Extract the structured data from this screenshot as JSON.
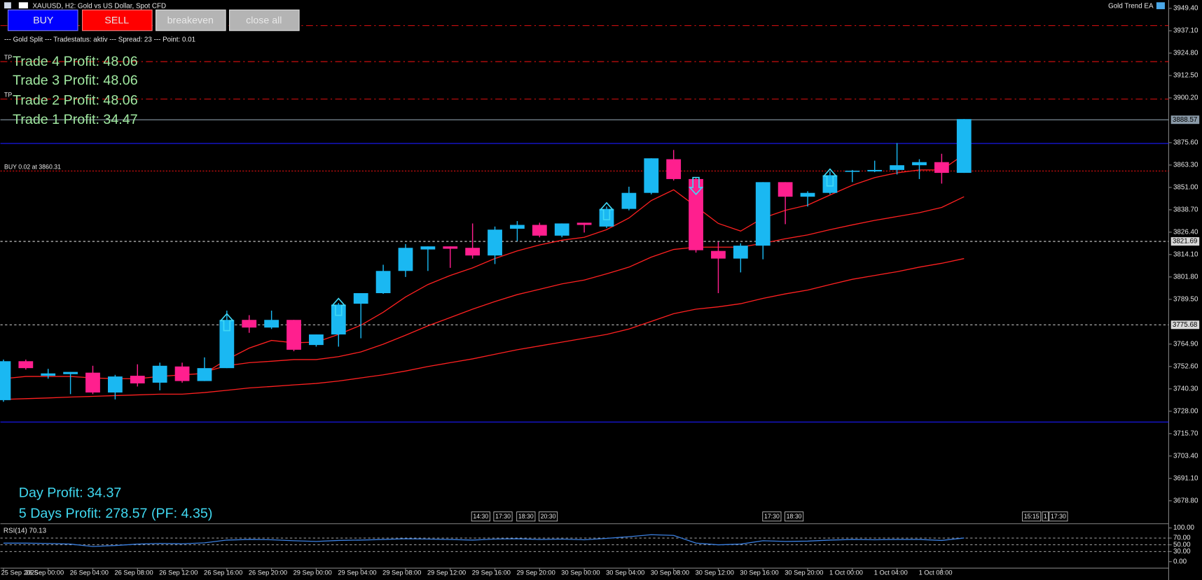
{
  "header": {
    "title": "XAUUSD, H2:  Gold vs US Dollar, Spot CFD",
    "ea_name": "Gold Trend EA",
    "status": "--- Gold Split --- Tradestatus: aktiv --- Spread: 23 --- Point: 0.01"
  },
  "buttons": [
    "BUY",
    "SELL",
    "breakeven",
    "close all"
  ],
  "panel": {
    "trades": [
      "Trade 4 Profit: 48.06",
      "Trade 3 Profit: 48.06",
      "Trade 2 Profit: 48.06",
      "Trade 1 Profit: 34.47"
    ],
    "day_profit": "Day Profit: 34.37",
    "five_days_profit": "5 Days Profit: 278.57 (PF: 4.35)"
  },
  "session_marks": [
    "14:30",
    "17:30",
    "18:30",
    "20:30",
    "17:30",
    "18:30",
    "15:15",
    "1",
    "17:30"
  ],
  "chart_data": {
    "type": "candlestick",
    "categories": [
      "25 Sep 2025",
      null,
      "26 Sep 00:00",
      null,
      "26 Sep 04:00",
      null,
      "26 Sep 08:00",
      null,
      "26 Sep 12:00",
      null,
      "26 Sep 16:00",
      null,
      "26 Sep 20:00",
      null,
      "29 Sep 00:00",
      null,
      "29 Sep 04:00",
      null,
      "29 Sep 08:00",
      null,
      "29 Sep 12:00",
      null,
      "29 Sep 16:00",
      null,
      "29 Sep 20:00",
      null,
      "30 Sep 00:00",
      null,
      "30 Sep 04:00",
      null,
      "30 Sep 08:00",
      null,
      "30 Sep 12:00",
      null,
      "30 Sep 16:00",
      null,
      "30 Sep 20:00",
      null,
      "1 Oct 00:00",
      null,
      "1 Oct 04:00",
      null,
      "1 Oct 08:00",
      null
    ],
    "open": [
      3734.1,
      3755.5,
      3747.5,
      3748.4,
      3749.2,
      3738.3,
      3747.5,
      3743.7,
      3752.6,
      3744.6,
      3751.7,
      3778.2,
      3774.0,
      3778.2,
      3764.4,
      3770.2,
      3787.1,
      3792.9,
      3805.1,
      3816.9,
      3818.6,
      3817.8,
      3813.6,
      3828.3,
      3830.4,
      3824.5,
      3831.6,
      3829.5,
      3839.2,
      3848.0,
      3866.5,
      3855.6,
      3816.1,
      3811.9,
      3819.0,
      3853.9,
      3845.9,
      3848.0,
      3859.8,
      3859.8,
      3860.6,
      3863.2,
      3864.9,
      3859.0
    ],
    "high": [
      3756.4,
      3756.4,
      3751.3,
      3749.6,
      3753.0,
      3748.0,
      3753.8,
      3754.7,
      3754.7,
      3757.6,
      3783.3,
      3780.8,
      3783.3,
      3778.2,
      3770.2,
      3787.5,
      3792.9,
      3808.5,
      3819.9,
      3818.6,
      3818.6,
      3831.2,
      3829.5,
      3832.5,
      3831.6,
      3831.2,
      3831.6,
      3840.5,
      3851.4,
      3867.0,
      3871.6,
      3856.4,
      3821.1,
      3820.3,
      3853.9,
      3853.9,
      3848.9,
      3859.8,
      3860.6,
      3865.7,
      3875.4,
      3866.5,
      3869.5,
      3888.57
    ],
    "low": [
      3733.2,
      3750.9,
      3745.9,
      3737.4,
      3737.4,
      3734.5,
      3741.6,
      3739.5,
      3743.7,
      3744.6,
      3751.7,
      3771.1,
      3773.2,
      3761.0,
      3763.5,
      3763.5,
      3768.1,
      3792.5,
      3801.8,
      3805.1,
      3806.8,
      3811.9,
      3808.9,
      3821.5,
      3823.6,
      3823.6,
      3826.2,
      3828.7,
      3838.4,
      3847.2,
      3854.8,
      3815.2,
      3792.9,
      3804.3,
      3811.5,
      3830.8,
      3840.5,
      3847.2,
      3853.9,
      3859.4,
      3858.1,
      3855.6,
      3853.1,
      3859.0
    ],
    "close": [
      3755.5,
      3751.7,
      3748.8,
      3749.6,
      3738.3,
      3747.1,
      3743.3,
      3753.0,
      3744.6,
      3751.7,
      3778.2,
      3774.0,
      3778.2,
      3761.8,
      3770.2,
      3786.6,
      3792.9,
      3805.1,
      3817.8,
      3818.6,
      3817.3,
      3813.6,
      3827.8,
      3830.4,
      3824.5,
      3831.2,
      3830.4,
      3839.2,
      3848.0,
      3867.0,
      3855.6,
      3816.5,
      3811.9,
      3819.0,
      3853.9,
      3845.9,
      3848.0,
      3857.7,
      3860.2,
      3860.6,
      3863.2,
      3864.9,
      3859.0,
      3888.57
    ],
    "up_color": "#1ab8f2",
    "down_color": "#ff1f8e",
    "indicators": [
      {
        "color": "#ff2020",
        "values": [
          3745.9,
          3747.1,
          3747.1,
          3747.1,
          3746.3,
          3745.9,
          3745.9,
          3747.1,
          3748.0,
          3748.8,
          3756.4,
          3762.7,
          3766.9,
          3765.6,
          3766.0,
          3770.2,
          3775.3,
          3782.4,
          3790.8,
          3797.6,
          3802.6,
          3806.8,
          3811.9,
          3816.1,
          3819.4,
          3822.0,
          3823.6,
          3827.8,
          3834.2,
          3843.8,
          3849.7,
          3840.5,
          3831.2,
          3827.0,
          3834.2,
          3838.4,
          3841.3,
          3846.8,
          3852.2,
          3856.4,
          3859.0,
          3860.6,
          3860.6,
          3869.1
        ]
      },
      {
        "color": "#ff2020",
        "values": [
          null,
          null,
          null,
          null,
          null,
          null,
          null,
          null,
          null,
          3749.6,
          3753.0,
          3754.7,
          3755.5,
          3756.4,
          3756.4,
          3758.0,
          3760.6,
          3764.8,
          3769.8,
          3774.9,
          3779.5,
          3784.1,
          3788.3,
          3792.1,
          3795.0,
          3798.0,
          3800.1,
          3803.5,
          3807.2,
          3812.7,
          3816.9,
          3818.2,
          3818.2,
          3818.2,
          3820.3,
          3822.8,
          3824.9,
          3827.8,
          3830.4,
          3832.9,
          3835.0,
          3837.1,
          3840.0,
          3845.9
        ]
      },
      {
        "color": "#ff2020",
        "values": [
          3734.5,
          3734.9,
          3735.3,
          3735.8,
          3736.2,
          3736.6,
          3737.0,
          3737.4,
          3737.4,
          3738.3,
          3739.5,
          3740.8,
          3741.6,
          3742.5,
          3743.3,
          3744.6,
          3746.3,
          3748.0,
          3750.1,
          3752.6,
          3754.7,
          3756.8,
          3759.3,
          3761.8,
          3763.9,
          3766.0,
          3768.1,
          3770.2,
          3773.2,
          3777.4,
          3781.6,
          3784.1,
          3785.4,
          3787.1,
          3790.0,
          3792.5,
          3794.6,
          3797.6,
          3800.5,
          3802.6,
          3804.7,
          3807.2,
          3809.3,
          3811.9
        ]
      }
    ],
    "signals": {
      "up": [
        10,
        15,
        27,
        37
      ],
      "down": [
        31
      ],
      "color": "#3fd8f5"
    },
    "levels": [
      {
        "value": 3940.1,
        "color": "#e01010",
        "style": "dashdot"
      },
      {
        "value": 3920.4,
        "color": "#e01010",
        "style": "dashdot",
        "text": "TP"
      },
      {
        "value": 3899.8,
        "color": "#e01010",
        "style": "dashdot",
        "text": "TP"
      },
      {
        "value": 3888.57,
        "color": "#8a9aa8",
        "style": "solid",
        "label": "3888.57"
      },
      {
        "value": 3875.4,
        "color": "#1a1aff",
        "style": "solid"
      },
      {
        "value": 3860.31,
        "color": "#e01010",
        "style": "dotted",
        "text": "BUY 0.02 at 3860.31"
      },
      {
        "value": 3821.69,
        "color": "#d8d8d8",
        "style": "dashed",
        "label": "3821.69"
      },
      {
        "value": 3775.68,
        "color": "#d8d8d8",
        "style": "dashed",
        "label": "3775.68"
      },
      {
        "value": 3722.3,
        "color": "#1a1aff",
        "style": "solid"
      }
    ],
    "ylim": [
      3666.8,
      3954.0
    ],
    "yticks": [
      {
        "value": 3949.4,
        "label": "3949.40"
      },
      {
        "value": 3937.1,
        "label": "3937.10"
      },
      {
        "value": 3924.8,
        "label": "3924.80"
      },
      {
        "value": 3912.5,
        "label": "3912.50"
      },
      {
        "value": 3900.2,
        "label": "3900.20"
      },
      {
        "value": 3875.6,
        "label": "3875.60"
      },
      {
        "value": 3863.3,
        "label": "3863.30"
      },
      {
        "value": 3851,
        "label": "3851.00"
      },
      {
        "value": 3838.7,
        "label": "3838.70"
      },
      {
        "value": 3826.4,
        "label": "3826.40"
      },
      {
        "value": 3814.1,
        "label": "3814.10"
      },
      {
        "value": 3801.8,
        "label": "3801.80"
      },
      {
        "value": 3789.5,
        "label": "3789.50"
      },
      {
        "value": 3764.9,
        "label": "3764.90"
      },
      {
        "value": 3752.6,
        "label": "3752.60"
      },
      {
        "value": 3740.3,
        "label": "3740.30"
      },
      {
        "value": 3728,
        "label": "3728.00"
      },
      {
        "value": 3715.7,
        "label": "3715.70"
      },
      {
        "value": 3703.4,
        "label": "3703.40"
      },
      {
        "value": 3691.1,
        "label": "3691.10"
      },
      {
        "value": 3678.8,
        "label": "3678.80"
      }
    ],
    "rsi": {
      "title": "RSI(14) 70.13",
      "color": "#3a7fe0",
      "values": [
        55,
        55,
        54,
        52,
        45,
        48,
        52,
        54,
        53,
        56,
        64,
        66,
        65,
        62,
        60,
        63,
        64,
        66,
        68,
        67,
        66,
        64,
        67,
        68,
        66,
        67,
        65,
        69,
        74,
        80,
        78,
        55,
        50,
        52,
        62,
        60,
        61,
        64,
        66,
        65,
        66,
        66,
        63,
        70.13
      ],
      "ylim": [
        0,
        100
      ],
      "levels": [
        70,
        50,
        30
      ],
      "yticks": [
        {
          "value": 100,
          "label": "100.00"
        },
        {
          "value": 70,
          "label": "70.00"
        },
        {
          "value": 50,
          "label": "50.00"
        },
        {
          "value": 30,
          "label": "30.00"
        },
        {
          "value": 0,
          "label": "0.00"
        }
      ]
    }
  }
}
